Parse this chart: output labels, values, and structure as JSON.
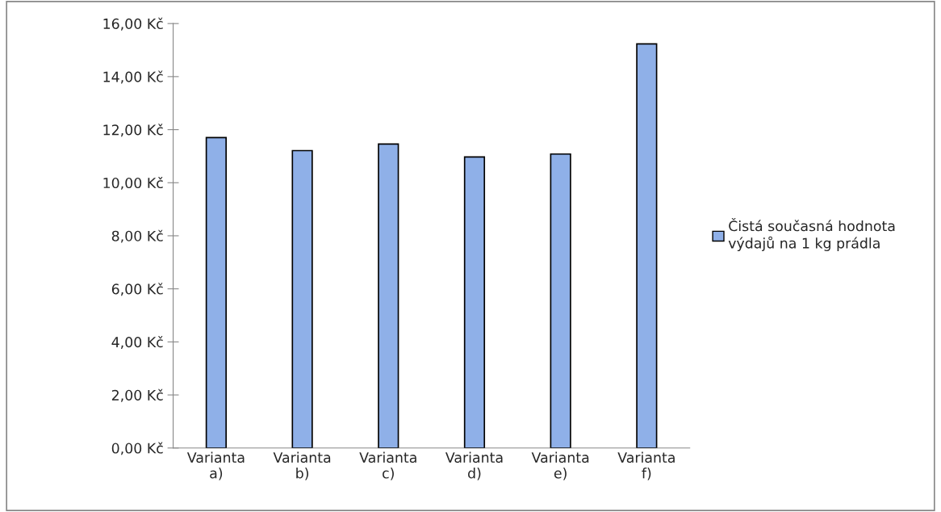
{
  "chart_data": {
    "type": "bar",
    "categories": [
      "Varianta a)",
      "Varianta b)",
      "Varianta c)",
      "Varianta d)",
      "Varianta e)",
      "Varianta f)"
    ],
    "series": [
      {
        "name": "Čistá současná hodnota výdajů na 1 kg prádla",
        "color": "#8fb0e8",
        "values": [
          11.7,
          11.21,
          11.46,
          10.97,
          11.08,
          15.23
        ]
      }
    ],
    "ylim": [
      0,
      16
    ],
    "yticks": [
      {
        "value": 0,
        "label": "0,00 Kč"
      },
      {
        "value": 2,
        "label": "2,00 Kč"
      },
      {
        "value": 4,
        "label": "4,00 Kč"
      },
      {
        "value": 6,
        "label": "6,00 Kč"
      },
      {
        "value": 8,
        "label": "8,00 Kč"
      },
      {
        "value": 10,
        "label": "10,00 Kč"
      },
      {
        "value": 12,
        "label": "12,00 Kč"
      },
      {
        "value": 14,
        "label": "14,00 Kč"
      },
      {
        "value": 16,
        "label": "16,00 Kč"
      }
    ],
    "legend": "right"
  }
}
